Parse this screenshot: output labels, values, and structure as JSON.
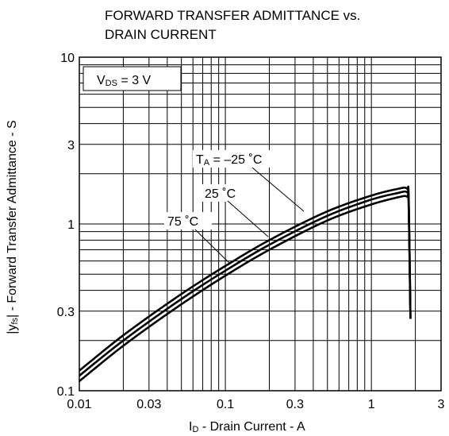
{
  "chart_data": {
    "type": "line",
    "title_line1": "FORWARD TRANSFER ADMITTANCE vs.",
    "title_line2": "DRAIN CURRENT",
    "xlabel": {
      "main": "I",
      "sub": "D",
      "rest": " - Drain Current - A"
    },
    "ylabel": {
      "pre": "|y",
      "sub": "fs",
      "rest": "| - Forward Transfer Admittance - S"
    },
    "x_scale": "log",
    "y_scale": "log",
    "xlim": [
      0.01,
      3
    ],
    "ylim": [
      0.1,
      10
    ],
    "x_ticks": [
      {
        "value": 0.01,
        "label": "0.01"
      },
      {
        "value": 0.03,
        "label": "0.03"
      },
      {
        "value": 0.1,
        "label": "0.1"
      },
      {
        "value": 0.3,
        "label": "0.3"
      },
      {
        "value": 1,
        "label": "1"
      },
      {
        "value": 3,
        "label": "3"
      }
    ],
    "y_ticks": [
      {
        "value": 0.1,
        "label": "0.1"
      },
      {
        "value": 0.3,
        "label": "0.3"
      },
      {
        "value": 1,
        "label": "1"
      },
      {
        "value": 3,
        "label": "3"
      },
      {
        "value": 10,
        "label": "10"
      }
    ],
    "grid": true,
    "condition": {
      "main": "V",
      "sub": "DS",
      "rest": " = 3 V"
    },
    "series": [
      {
        "label_main": "T",
        "label_sub": "A",
        "label_rest": " = –25 ˚C",
        "x": [
          0.01,
          0.02,
          0.05,
          0.1,
          0.2,
          0.5,
          1.0,
          1.5,
          1.75,
          1.8,
          1.85
        ],
        "y": [
          0.132,
          0.215,
          0.38,
          0.56,
          0.8,
          1.19,
          1.48,
          1.62,
          1.63,
          1.4,
          0.27
        ]
      },
      {
        "label_main": "",
        "label_sub": "",
        "label_rest": "25 ˚C",
        "x": [
          0.01,
          0.02,
          0.05,
          0.1,
          0.2,
          0.5,
          1.0,
          1.5,
          1.75,
          1.8,
          1.85
        ],
        "y": [
          0.123,
          0.2,
          0.355,
          0.525,
          0.75,
          1.12,
          1.4,
          1.53,
          1.55,
          1.35,
          0.27
        ]
      },
      {
        "label_main": "",
        "label_sub": "",
        "label_rest": "75 ˚C",
        "x": [
          0.01,
          0.02,
          0.05,
          0.1,
          0.2,
          0.5,
          1.0,
          1.5,
          1.75,
          1.8,
          1.85
        ],
        "y": [
          0.114,
          0.186,
          0.33,
          0.49,
          0.7,
          1.05,
          1.31,
          1.44,
          1.46,
          1.3,
          0.27
        ]
      }
    ]
  }
}
